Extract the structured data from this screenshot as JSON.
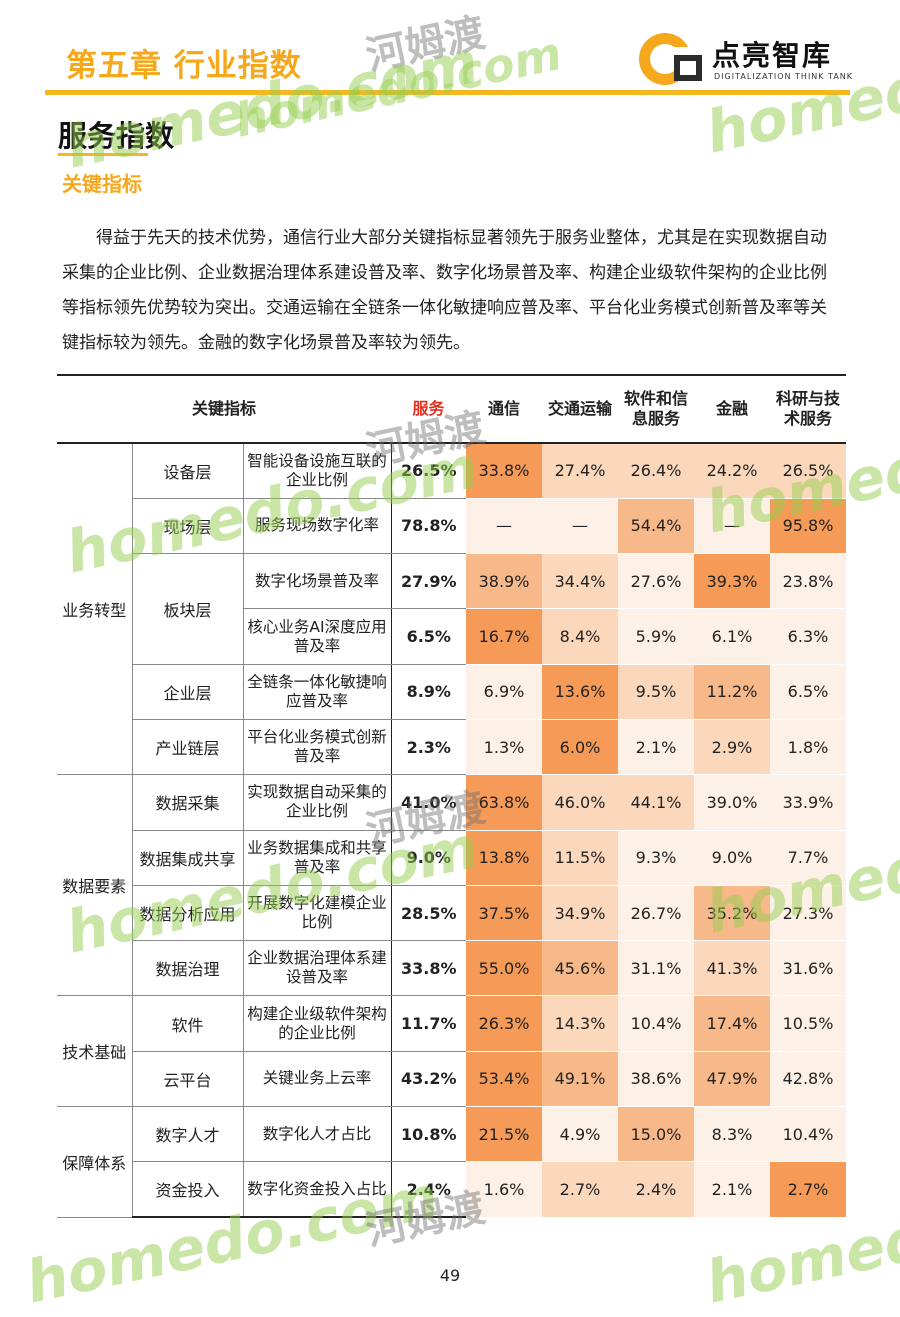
{
  "header": {
    "chapter": "第五章  行业指数",
    "logo_name": "点亮智库",
    "logo_sub": "DIGITALIZATION THINK TANK"
  },
  "section_title": "服务指数",
  "subsection_title": "关键指标",
  "paragraph": "得益于先天的技术优势，通信行业大部分关键指标显著领先于服务业整体，尤其是在实现数据自动采集的企业比例、企业数据治理体系建设普及率、数字化场景普及率、构建企业级软件架构的企业比例等指标领先优势较为突出。交通运输在全链条一体化敏捷响应普及率、平台化业务模式创新普及率等关键指标较为领先。金融的数字化场景普及率较为领先。",
  "table": {
    "headers": {
      "key_indicator": "关键指标",
      "service": "服务",
      "telecom": "通信",
      "transport": "交通运输",
      "software": "软件和信息服务",
      "finance": "金融",
      "research": "科研与技术服务"
    },
    "groups": [
      "业务转型",
      "数据要素",
      "技术基础",
      "保障体系"
    ],
    "rows": [
      {
        "category": "设备层",
        "indicator": "智能设备设施互联的企业比例",
        "service": "26.5%",
        "values": [
          "33.8%",
          "27.4%",
          "26.4%",
          "24.2%",
          "26.5%"
        ]
      },
      {
        "category": "现场层",
        "indicator": "服务现场数字化率",
        "service": "78.8%",
        "values": [
          "—",
          "—",
          "54.4%",
          "—",
          "95.8%"
        ]
      },
      {
        "category": "板块层",
        "indicator": "数字化场景普及率",
        "service": "27.9%",
        "values": [
          "38.9%",
          "34.4%",
          "27.6%",
          "39.3%",
          "23.8%"
        ]
      },
      {
        "category": "",
        "indicator": "核心业务AI深度应用普及率",
        "service": "6.5%",
        "values": [
          "16.7%",
          "8.4%",
          "5.9%",
          "6.1%",
          "6.3%"
        ]
      },
      {
        "category": "企业层",
        "indicator": "全链条一体化敏捷响应普及率",
        "service": "8.9%",
        "values": [
          "6.9%",
          "13.6%",
          "9.5%",
          "11.2%",
          "6.5%"
        ]
      },
      {
        "category": "产业链层",
        "indicator": "平台化业务模式创新普及率",
        "service": "2.3%",
        "values": [
          "1.3%",
          "6.0%",
          "2.1%",
          "2.9%",
          "1.8%"
        ]
      },
      {
        "category": "数据采集",
        "indicator": "实现数据自动采集的企业比例",
        "service": "41.0%",
        "values": [
          "63.8%",
          "46.0%",
          "44.1%",
          "39.0%",
          "33.9%"
        ]
      },
      {
        "category": "数据集成共享",
        "indicator": "业务数据集成和共享普及率",
        "service": "9.0%",
        "values": [
          "13.8%",
          "11.5%",
          "9.3%",
          "9.0%",
          "7.7%"
        ]
      },
      {
        "category": "数据分析应用",
        "indicator": "开展数字化建模企业比例",
        "service": "28.5%",
        "values": [
          "37.5%",
          "34.9%",
          "26.7%",
          "35.2%",
          "27.3%"
        ]
      },
      {
        "category": "数据治理",
        "indicator": "企业数据治理体系建设普及率",
        "service": "33.8%",
        "values": [
          "55.0%",
          "45.6%",
          "31.1%",
          "41.3%",
          "31.6%"
        ]
      },
      {
        "category": "软件",
        "indicator": "构建企业级软件架构的企业比例",
        "service": "11.7%",
        "values": [
          "26.3%",
          "14.3%",
          "10.4%",
          "17.4%",
          "10.5%"
        ]
      },
      {
        "category": "云平台",
        "indicator": "关键业务上云率",
        "service": "43.2%",
        "values": [
          "53.4%",
          "49.1%",
          "38.6%",
          "47.9%",
          "42.8%"
        ]
      },
      {
        "category": "数字人才",
        "indicator": "数字化人才占比",
        "service": "10.8%",
        "values": [
          "21.5%",
          "4.9%",
          "15.0%",
          "8.3%",
          "10.4%"
        ]
      },
      {
        "category": "资金投入",
        "indicator": "数字化资金投入占比",
        "service": "2.4%",
        "values": [
          "1.6%",
          "2.7%",
          "2.4%",
          "2.1%",
          "2.7%"
        ]
      }
    ]
  },
  "heat_colors": {
    "h0": "#fdf0e6",
    "h1": "#fbd8bc",
    "h2": "#f8b98a",
    "h3": "#f59a57"
  },
  "watermark": {
    "text": "homedo.com",
    "text_cn": "河姆渡",
    "text_short": "homedo"
  },
  "page_number": "49"
}
